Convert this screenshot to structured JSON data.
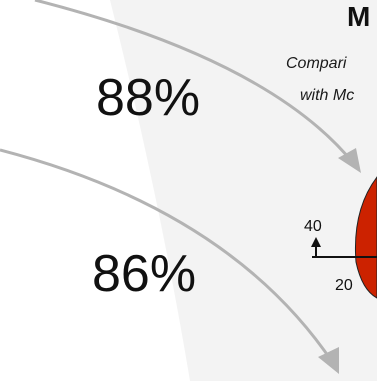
{
  "flow": {
    "first_percentage": "88%",
    "second_percentage": "86%"
  },
  "panel": {
    "title": "M",
    "subtitle_line_1": "Compari",
    "subtitle_line_2": "with Mc"
  },
  "gauge": {
    "tick_top": "40",
    "tick_bottom": "20"
  },
  "colors": {
    "arrow": "#b3b3b3",
    "shade": "#f2f2f2",
    "gauge_red": "#cc2200",
    "text": "#111111"
  }
}
